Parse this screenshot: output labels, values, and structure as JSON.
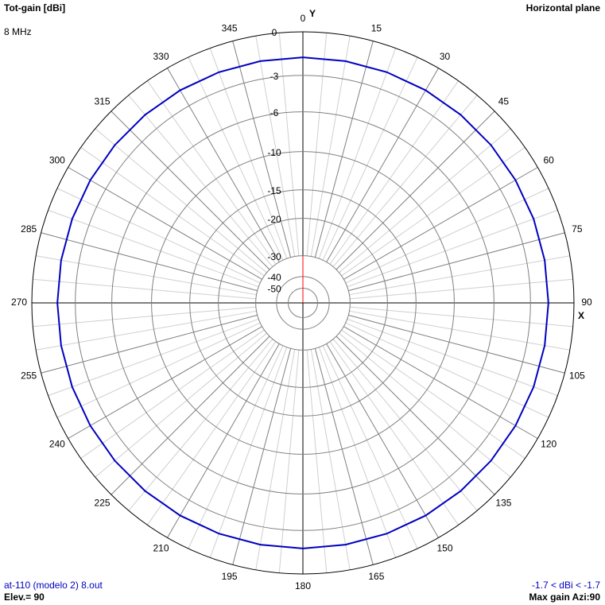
{
  "chart_data": {
    "type": "polar",
    "title": "Tot-gain [dBi]",
    "subtitle": "8 MHz",
    "plane_label": "Horizontal plane",
    "x_axis_label": "X",
    "y_axis_label": "Y",
    "scale": "ARRL",
    "rlim": [
      -50,
      0
    ],
    "rticks": [
      0,
      -3,
      -6,
      -10,
      -15,
      -20,
      -30,
      -40,
      -50
    ],
    "angle_ticks": [
      0,
      15,
      30,
      45,
      60,
      75,
      90,
      105,
      120,
      135,
      150,
      165,
      180,
      195,
      210,
      225,
      240,
      255,
      270,
      285,
      300,
      315,
      330,
      345
    ],
    "series": [
      {
        "name": "at-110 (modelo 2) 8.out",
        "color": "#0000c0",
        "theta": [
          0,
          10,
          20,
          30,
          40,
          50,
          60,
          70,
          80,
          90,
          100,
          110,
          120,
          130,
          140,
          150,
          160,
          170,
          180,
          190,
          200,
          210,
          220,
          230,
          240,
          250,
          260,
          270,
          280,
          290,
          300,
          310,
          320,
          330,
          340,
          350
        ],
        "values": [
          -1.7,
          -1.7,
          -1.7,
          -1.7,
          -1.7,
          -1.7,
          -1.7,
          -1.7,
          -1.7,
          -1.7,
          -1.7,
          -1.7,
          -1.7,
          -1.7,
          -1.7,
          -1.7,
          -1.7,
          -1.7,
          -1.7,
          -1.7,
          -1.7,
          -1.7,
          -1.7,
          -1.7,
          -1.7,
          -1.7,
          -1.7,
          -1.7,
          -1.7,
          -1.7,
          -1.7,
          -1.7,
          -1.7,
          -1.7,
          -1.7,
          -1.7
        ]
      }
    ],
    "gain_range_label": "-1.7 < dBi < -1.7",
    "elevation_label": "Elev.= 90",
    "max_gain_label": "Max gain Azi:90"
  }
}
